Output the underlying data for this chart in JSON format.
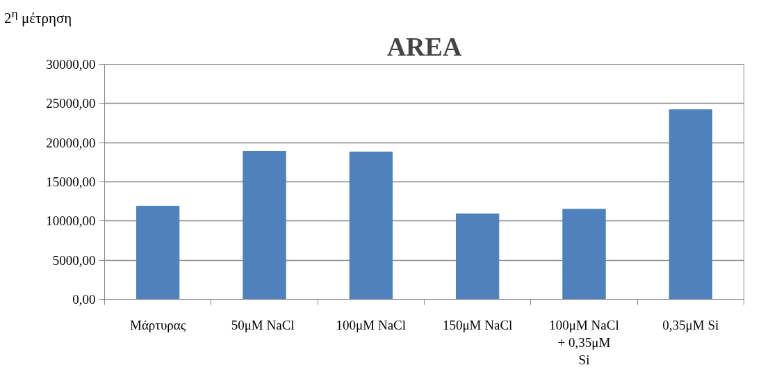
{
  "chart_data": {
    "type": "bar",
    "title": "AREA",
    "annotations": [
      "2$^{η}$ μέτρηση"
    ],
    "categories": [
      "Μάρτυρας",
      "50μM  NaCl",
      "100μM NaCl",
      "150μM NaCl",
      "100μM NaCl + 0,35μM Si",
      "0,35μM Si"
    ],
    "values": [
      11900,
      18900,
      18800,
      10900,
      11500,
      24200
    ],
    "color": "#4f81bd",
    "ylim": [
      0,
      30000
    ],
    "yticks": [
      {
        "value": 0,
        "label": "0,00"
      },
      {
        "value": 5000,
        "label": "5000,00"
      },
      {
        "value": 10000,
        "label": "10000,00"
      },
      {
        "value": 15000,
        "label": "15000,00"
      },
      {
        "value": 20000,
        "label": "20000,00"
      },
      {
        "value": 25000,
        "label": "25000,00"
      },
      {
        "value": 30000,
        "label": "30000,00"
      }
    ],
    "grid": "y"
  }
}
